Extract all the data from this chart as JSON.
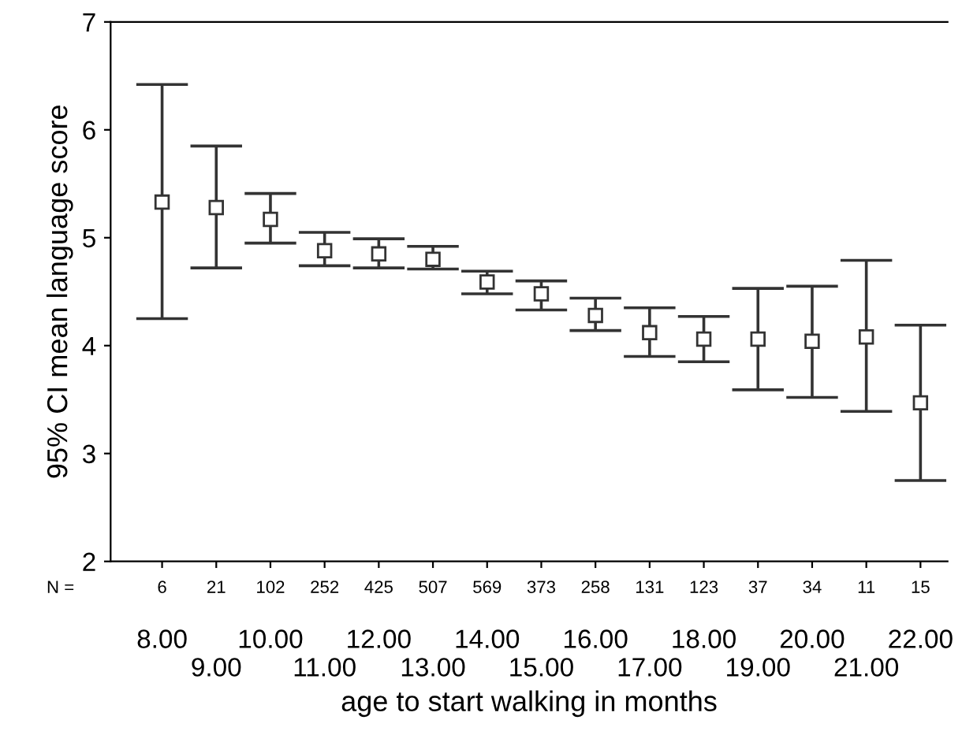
{
  "chart_data": {
    "type": "scatter",
    "xlabel": "age to start walking in months",
    "ylabel": "95% CI mean language score",
    "categories": [
      "8.00",
      "9.00",
      "10.00",
      "11.00",
      "12.00",
      "13.00",
      "14.00",
      "15.00",
      "16.00",
      "17.00",
      "18.00",
      "19.00",
      "20.00",
      "21.00",
      "22.00"
    ],
    "series": [
      {
        "color": "#333333",
        "values": [
          5.33,
          5.28,
          5.17,
          4.88,
          4.85,
          4.8,
          4.59,
          4.48,
          4.28,
          4.12,
          4.06,
          4.06,
          4.04,
          4.08,
          3.47
        ],
        "errors": [
          [
            4.25,
            6.42
          ],
          [
            4.72,
            5.85
          ],
          [
            4.95,
            5.41
          ],
          [
            4.74,
            5.05
          ],
          [
            4.72,
            4.99
          ],
          [
            4.71,
            4.92
          ],
          [
            4.48,
            4.69
          ],
          [
            4.33,
            4.6
          ],
          [
            4.14,
            4.44
          ],
          [
            3.9,
            4.35
          ],
          [
            3.85,
            4.27
          ],
          [
            3.59,
            4.53
          ],
          [
            3.52,
            4.55
          ],
          [
            3.39,
            4.79
          ],
          [
            2.75,
            4.19
          ]
        ]
      }
    ],
    "ylim": [
      2,
      7
    ],
    "yticks": [
      2,
      3,
      4,
      5,
      6,
      7
    ],
    "grid": false,
    "legend": false,
    "marker": "square",
    "line_style": "none",
    "annotations": [
      "N =",
      {
        "text": "6",
        "x": "8.00"
      },
      {
        "text": "21",
        "x": "9.00"
      },
      {
        "text": "102",
        "x": "10.00"
      },
      {
        "text": "252",
        "x": "11.00"
      },
      {
        "text": "425",
        "x": "12.00"
      },
      {
        "text": "507",
        "x": "13.00"
      },
      {
        "text": "569",
        "x": "14.00"
      },
      {
        "text": "373",
        "x": "15.00"
      },
      {
        "text": "258",
        "x": "16.00"
      },
      {
        "text": "131",
        "x": "17.00"
      },
      {
        "text": "123",
        "x": "18.00"
      },
      {
        "text": "37",
        "x": "19.00"
      },
      {
        "text": "34",
        "x": "20.00"
      },
      {
        "text": "11",
        "x": "21.00"
      },
      {
        "text": "15",
        "x": "22.00"
      }
    ]
  }
}
